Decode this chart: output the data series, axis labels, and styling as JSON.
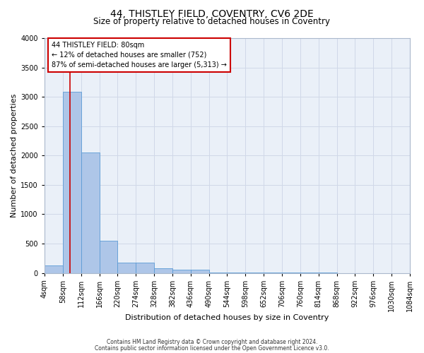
{
  "title1": "44, THISTLEY FIELD, COVENTRY, CV6 2DE",
  "title2": "Size of property relative to detached houses in Coventry",
  "xlabel": "Distribution of detached houses by size in Coventry",
  "ylabel": "Number of detached properties",
  "bin_edges": [
    4,
    58,
    112,
    166,
    220,
    274,
    328,
    382,
    436,
    490,
    544,
    598,
    652,
    706,
    760,
    814,
    868,
    922,
    976,
    1030,
    1084
  ],
  "bar_heights": [
    130,
    3080,
    2050,
    550,
    180,
    180,
    80,
    60,
    50,
    10,
    5,
    3,
    2,
    1,
    1,
    1,
    0,
    0,
    0,
    0
  ],
  "bar_color": "#aec6e8",
  "bar_edge_color": "#5b9bd5",
  "property_size": 80,
  "property_line_color": "#cc0000",
  "annotation_box_color": "#cc0000",
  "annotation_line1": "44 THISTLEY FIELD: 80sqm",
  "annotation_line2": "← 12% of detached houses are smaller (752)",
  "annotation_line3": "87% of semi-detached houses are larger (5,313) →",
  "grid_color": "#d0d8e8",
  "background_color": "#eaf0f8",
  "ylim": [
    0,
    4000
  ],
  "yticks": [
    0,
    500,
    1000,
    1500,
    2000,
    2500,
    3000,
    3500,
    4000
  ],
  "footer1": "Contains HM Land Registry data © Crown copyright and database right 2024.",
  "footer2": "Contains public sector information licensed under the Open Government Licence v3.0.",
  "title1_fontsize": 10,
  "title2_fontsize": 8.5,
  "xlabel_fontsize": 8,
  "ylabel_fontsize": 8,
  "tick_fontsize": 7,
  "footer_fontsize": 5.5,
  "ann_fontsize": 7
}
